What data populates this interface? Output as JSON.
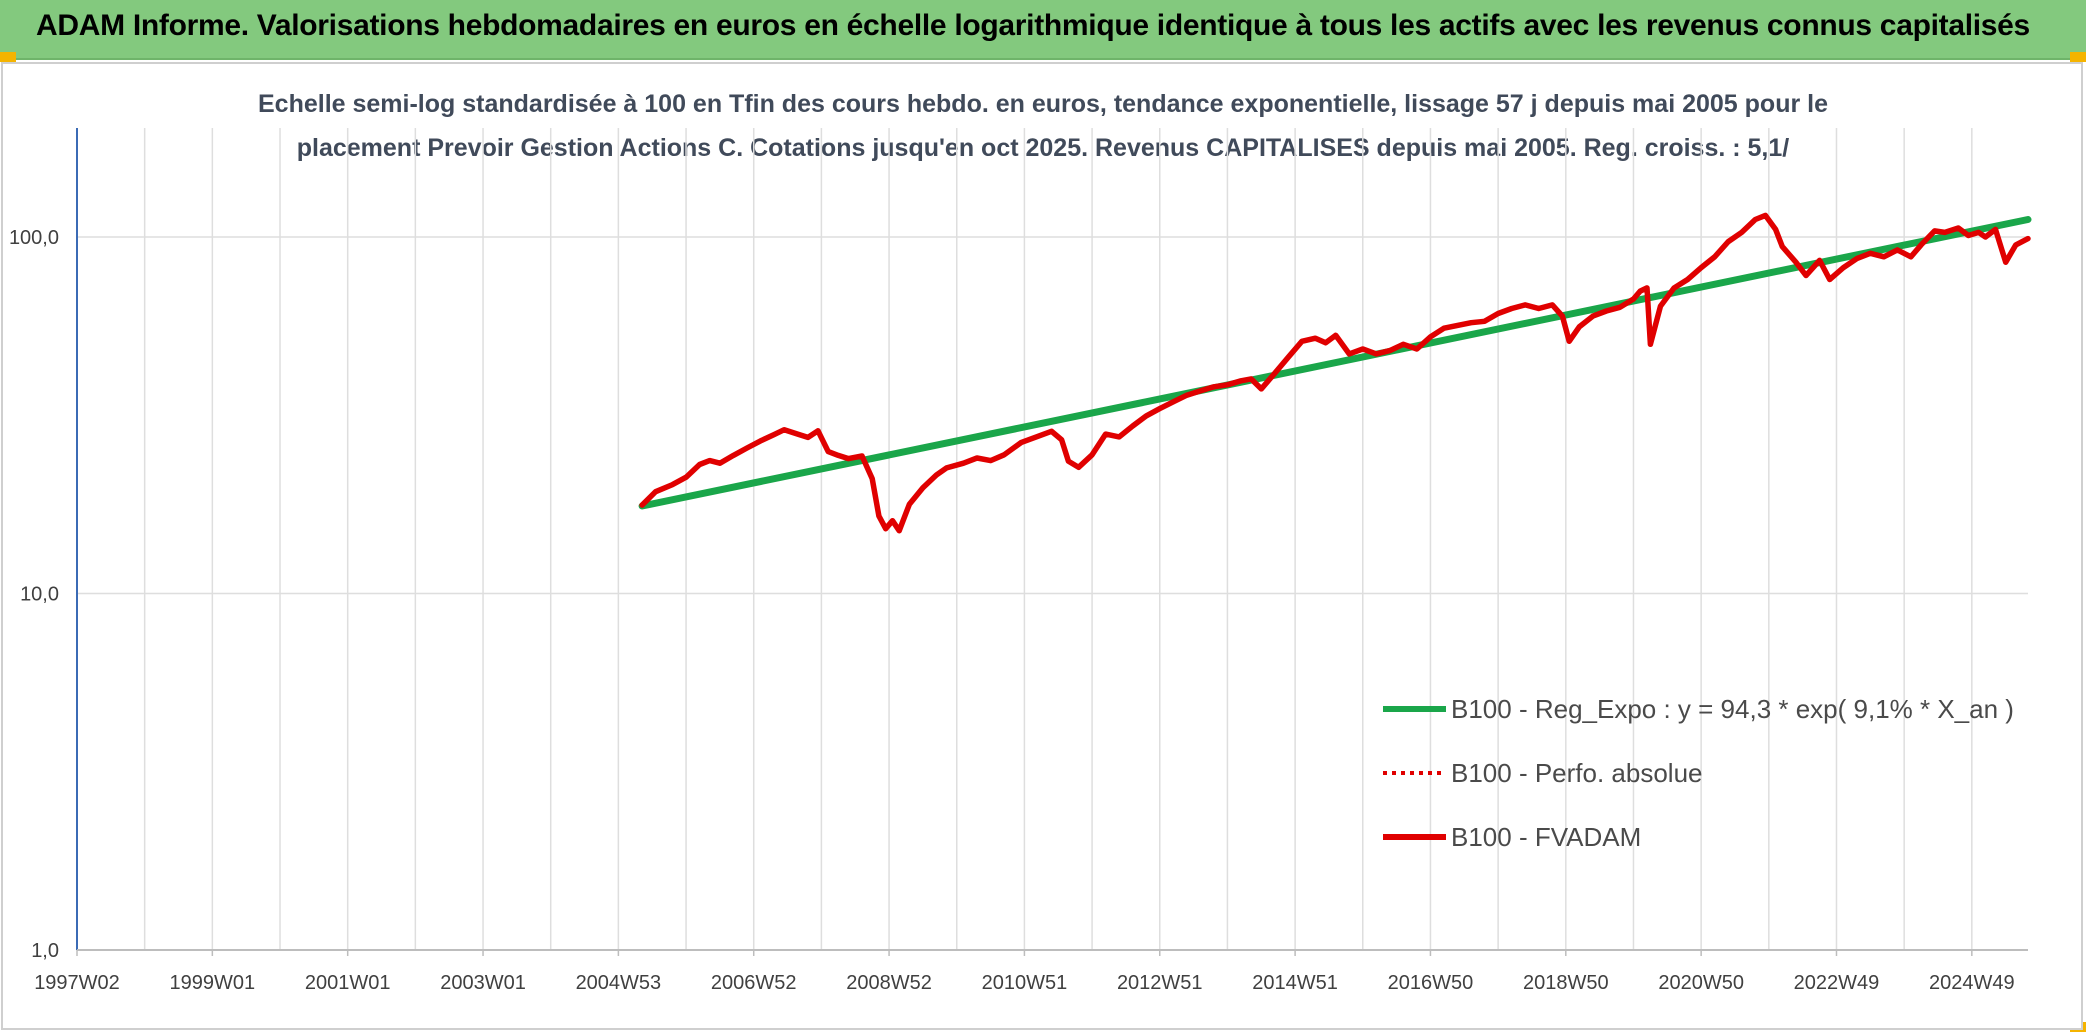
{
  "banner": {
    "title": "ADAM Informe. Valorisations hebdomadaires en euros en échelle logarithmique identique à tous les actifs avec les revenus connus capitalisés",
    "background": "#83c97e",
    "corner_color": "#f5b400"
  },
  "chart_data": {
    "type": "line",
    "title_line1": "Echelle semi-log standardisée à 100 en Tfin des cours hebdo. en euros, tendance exponentielle, lissage 57 j depuis mai 2005 pour le",
    "title_line2": "placement Prevoir Gestion Actions C. Cotations jusqu'en oct 2025. Revenus CAPITALISES depuis mai 2005. Reg. croiss. : 5,1/",
    "y_scale": "log",
    "ylim": [
      1,
      180
    ],
    "y_ticks": [
      "1,0",
      "10,0",
      "100,0"
    ],
    "xlim": [
      1997.0,
      2025.83
    ],
    "x_ticks": [
      {
        "label": "1997W02",
        "x": 1997.0
      },
      {
        "label": "1999W01",
        "x": 1999.0
      },
      {
        "label": "2001W01",
        "x": 2001.0
      },
      {
        "label": "2003W01",
        "x": 2003.0
      },
      {
        "label": "2004W53",
        "x": 2005.0
      },
      {
        "label": "2006W52",
        "x": 2007.0
      },
      {
        "label": "2008W52",
        "x": 2009.0
      },
      {
        "label": "2010W51",
        "x": 2011.0
      },
      {
        "label": "2012W51",
        "x": 2013.0
      },
      {
        "label": "2014W51",
        "x": 2015.0
      },
      {
        "label": "2016W50",
        "x": 2017.0
      },
      {
        "label": "2018W50",
        "x": 2019.0
      },
      {
        "label": "2020W50",
        "x": 2021.0
      },
      {
        "label": "2022W49",
        "x": 2023.0
      },
      {
        "label": "2024W49",
        "x": 2025.0
      }
    ],
    "grid": "vertical and horizontal",
    "legend_position": "bottom-right",
    "series": [
      {
        "name": "B100 - Reg_Expo : y = 94,3 * exp( 9,1% *  X_an )",
        "color": "#1aa64a",
        "style": "solid",
        "x": [
          2005.35,
          2025.83
        ],
        "y": [
          17.6,
          112
        ]
      },
      {
        "name": "B100 - Perfo. absolue",
        "color": "#e00000",
        "style": "dotted",
        "x": [],
        "y": []
      },
      {
        "name": "B100 - FVADAM",
        "color": "#e00000",
        "style": "solid",
        "x": [
          2005.35,
          2005.55,
          2005.8,
          2006.0,
          2006.2,
          2006.35,
          2006.5,
          2006.7,
          2006.9,
          2007.1,
          2007.3,
          2007.45,
          2007.65,
          2007.8,
          2007.95,
          2008.1,
          2008.25,
          2008.4,
          2008.6,
          2008.75,
          2008.85,
          2008.95,
          2009.05,
          2009.15,
          2009.3,
          2009.5,
          2009.7,
          2009.85,
          2010.1,
          2010.3,
          2010.5,
          2010.7,
          2010.95,
          2011.2,
          2011.4,
          2011.55,
          2011.65,
          2011.8,
          2012.0,
          2012.2,
          2012.4,
          2012.6,
          2012.8,
          2013.0,
          2013.2,
          2013.4,
          2013.6,
          2013.8,
          2014.0,
          2014.2,
          2014.35,
          2014.5,
          2014.7,
          2014.9,
          2015.1,
          2015.3,
          2015.45,
          2015.6,
          2015.8,
          2016.0,
          2016.2,
          2016.4,
          2016.6,
          2016.8,
          2017.0,
          2017.2,
          2017.4,
          2017.6,
          2017.8,
          2018.0,
          2018.2,
          2018.4,
          2018.6,
          2018.8,
          2018.95,
          2019.05,
          2019.2,
          2019.4,
          2019.6,
          2019.8,
          2020.0,
          2020.1,
          2020.2,
          2020.25,
          2020.4,
          2020.6,
          2020.8,
          2021.0,
          2021.2,
          2021.4,
          2021.6,
          2021.8,
          2021.95,
          2022.1,
          2022.2,
          2022.4,
          2022.55,
          2022.75,
          2022.9,
          2023.1,
          2023.3,
          2023.5,
          2023.7,
          2023.9,
          2024.1,
          2024.25,
          2024.45,
          2024.6,
          2024.8,
          2024.95,
          2025.1,
          2025.2,
          2025.35,
          2025.5,
          2025.65,
          2025.83
        ],
        "y": [
          17.7,
          19.3,
          20.2,
          21.2,
          23.0,
          23.6,
          23.2,
          24.4,
          25.6,
          26.8,
          27.9,
          28.8,
          28.0,
          27.4,
          28.6,
          25.0,
          24.4,
          23.9,
          24.3,
          21.0,
          16.5,
          15.2,
          16.0,
          15.0,
          17.8,
          19.8,
          21.5,
          22.5,
          23.2,
          24.0,
          23.6,
          24.5,
          26.5,
          27.6,
          28.5,
          27.0,
          23.5,
          22.6,
          24.5,
          28.0,
          27.5,
          29.5,
          31.5,
          33.0,
          34.5,
          36.0,
          37.0,
          38.0,
          38.5,
          39.5,
          40.0,
          37.5,
          41.5,
          46.0,
          51.0,
          52.0,
          50.5,
          53.0,
          47.0,
          48.5,
          47.0,
          48.0,
          50.0,
          48.5,
          52.5,
          55.5,
          56.5,
          57.5,
          58.0,
          61.0,
          63.0,
          64.5,
          63.0,
          64.5,
          60.0,
          51.0,
          56.0,
          60.0,
          62.0,
          63.5,
          67.0,
          70.5,
          72.0,
          50.0,
          64.0,
          72.0,
          76.0,
          82.0,
          88.0,
          97.0,
          103.0,
          112.0,
          115.0,
          105.0,
          94.0,
          85.0,
          78.0,
          86.0,
          76.0,
          82.0,
          87.0,
          90.0,
          88.0,
          92.0,
          88.0,
          95.0,
          104.0,
          103.0,
          106.0,
          101.0,
          103.0,
          100.0,
          105.0,
          85.0,
          95.0,
          99.0
        ]
      }
    ]
  }
}
